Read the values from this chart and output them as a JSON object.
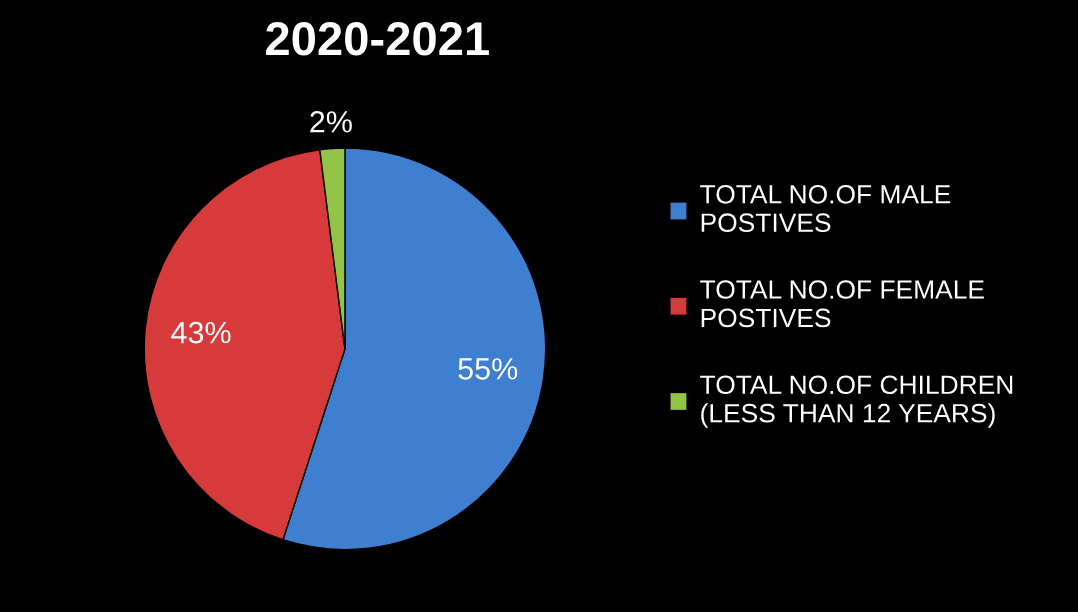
{
  "chart_data": {
    "type": "pie",
    "title": "2020-2021",
    "categories": [
      "TOTAL NO.OF MALE\nPOSTIVES",
      "TOTAL NO.OF FEMALE\nPOSTIVES",
      "TOTAL NO.OF CHILDREN\n(LESS THAN 12 YEARS)"
    ],
    "values": [
      55,
      43,
      2
    ],
    "colors": [
      "#3f7fcf",
      "#d63a3a",
      "#94c447"
    ],
    "value_labels": [
      "55%",
      "43%",
      "2%"
    ],
    "legend": "right"
  }
}
